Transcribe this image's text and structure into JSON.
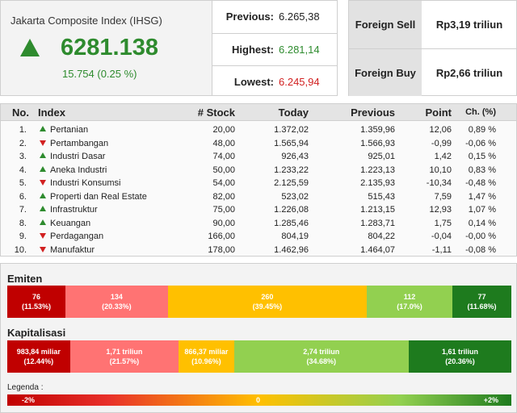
{
  "index": {
    "title": "Jakarta Composite Index (IHSG)",
    "value": "6281.138",
    "change": "15.754 (0.25 %)",
    "direction": "up"
  },
  "stats": {
    "previous_label": "Previous:",
    "previous_value": "6.265,38",
    "highest_label": "Highest:",
    "highest_value": "6.281,14",
    "lowest_label": "Lowest:",
    "lowest_value": "6.245,94"
  },
  "foreign": {
    "sell_label": "Foreign Sell",
    "sell_value": "Rp3,19 triliun",
    "buy_label": "Foreign Buy",
    "buy_value": "Rp2,66 triliun"
  },
  "table": {
    "headers": [
      "No.",
      "Index",
      "# Stock",
      "Today",
      "Previous",
      "Point",
      "Ch. (%)"
    ],
    "rows": [
      {
        "no": "1.",
        "dir": "up",
        "index": "Pertanian",
        "stock": "20,00",
        "today": "1.372,02",
        "previous": "1.359,96",
        "point": "12,06",
        "ch": "0,89 %"
      },
      {
        "no": "2.",
        "dir": "down",
        "index": "Pertambangan",
        "stock": "48,00",
        "today": "1.565,94",
        "previous": "1.566,93",
        "point": "-0,99",
        "ch": "-0,06 %"
      },
      {
        "no": "3.",
        "dir": "up",
        "index": "Industri Dasar",
        "stock": "74,00",
        "today": "926,43",
        "previous": "925,01",
        "point": "1,42",
        "ch": "0,15 %"
      },
      {
        "no": "4.",
        "dir": "up",
        "index": "Aneka Industri",
        "stock": "50,00",
        "today": "1.233,22",
        "previous": "1.223,13",
        "point": "10,10",
        "ch": "0,83 %"
      },
      {
        "no": "5.",
        "dir": "down",
        "index": "Industri Konsumsi",
        "stock": "54,00",
        "today": "2.125,59",
        "previous": "2.135,93",
        "point": "-10,34",
        "ch": "-0,48 %"
      },
      {
        "no": "6.",
        "dir": "up",
        "index": "Properti dan Real Estate",
        "stock": "82,00",
        "today": "523,02",
        "previous": "515,43",
        "point": "7,59",
        "ch": "1,47 %"
      },
      {
        "no": "7.",
        "dir": "up",
        "index": "Infrastruktur",
        "stock": "75,00",
        "today": "1.226,08",
        "previous": "1.213,15",
        "point": "12,93",
        "ch": "1,07 %"
      },
      {
        "no": "8.",
        "dir": "up",
        "index": "Keuangan",
        "stock": "90,00",
        "today": "1.285,46",
        "previous": "1.283,71",
        "point": "1,75",
        "ch": "0,14 %"
      },
      {
        "no": "9.",
        "dir": "down",
        "index": "Perdagangan",
        "stock": "166,00",
        "today": "804,19",
        "previous": "804,22",
        "point": "-0,04",
        "ch": "-0,00 %"
      },
      {
        "no": "10.",
        "dir": "down",
        "index": "Manufaktur",
        "stock": "178,00",
        "today": "1.462,96",
        "previous": "1.464,07",
        "point": "-1,11",
        "ch": "-0,08 %"
      }
    ]
  },
  "emiten": {
    "title": "Emiten",
    "segments": [
      {
        "value": "76",
        "pct": "(11.53%)",
        "share": 11.53,
        "color": "#c00000"
      },
      {
        "value": "134",
        "pct": "(20.33%)",
        "share": 20.33,
        "color": "#ff7373"
      },
      {
        "value": "260",
        "pct": "(39.45%)",
        "share": 39.45,
        "color": "#ffc000"
      },
      {
        "value": "112",
        "pct": "(17.0%)",
        "share": 17.0,
        "color": "#92d050"
      },
      {
        "value": "77",
        "pct": "(11.68%)",
        "share": 11.68,
        "color": "#1e7b1e"
      }
    ]
  },
  "kapitalisasi": {
    "title": "Kapitalisasi",
    "segments": [
      {
        "value": "983,84 miliar",
        "pct": "(12.44%)",
        "share": 12.44,
        "color": "#c00000"
      },
      {
        "value": "1,71 triliun",
        "pct": "(21.57%)",
        "share": 21.57,
        "color": "#ff7373"
      },
      {
        "value": "866,37 miliar",
        "pct": "(10.96%)",
        "share": 10.96,
        "color": "#ffc000"
      },
      {
        "value": "2,74 triliun",
        "pct": "(34.68%)",
        "share": 34.68,
        "color": "#92d050"
      },
      {
        "value": "1,61 triliun",
        "pct": "(20.36%)",
        "share": 20.36,
        "color": "#1e7b1e"
      }
    ]
  },
  "legend": {
    "label": "Legenda :",
    "min": "-2%",
    "mid": "0",
    "max": "+2%"
  }
}
